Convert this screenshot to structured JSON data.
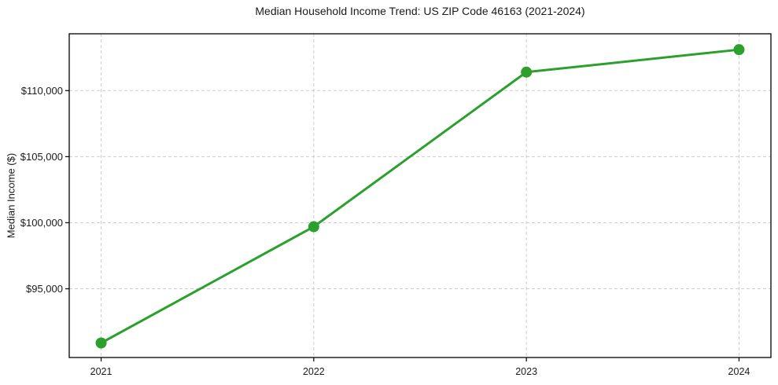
{
  "chart_data": {
    "type": "line",
    "title": "Median Household Income Trend: US ZIP Code 46163 (2021-2024)",
    "xlabel": "",
    "ylabel": "Median Income ($)",
    "x": [
      2021,
      2022,
      2023,
      2024
    ],
    "xtick_labels": [
      "2021",
      "2022",
      "2023",
      "2024"
    ],
    "series": [
      {
        "name": "Median Household Income",
        "values": [
          90900,
          99700,
          111400,
          113100
        ],
        "color": "#2ca02c",
        "marker": "circle"
      }
    ],
    "yticks": [
      95000,
      100000,
      105000,
      110000
    ],
    "ytick_labels": [
      "$95,000",
      "$100,000",
      "$105,000",
      "$110,000"
    ],
    "ylim": [
      89800,
      114300
    ],
    "xlim": [
      2020.85,
      2024.15
    ],
    "grid": true,
    "grid_style": "dashed",
    "grid_color": "#cccccc",
    "spine_color": "#000000",
    "text_color": "#1a1a1a",
    "background_color": "#ffffff",
    "legend": "none",
    "line_width": 3,
    "marker_radius": 7,
    "tick_font_size": 13,
    "xtick_font_size": 12.5
  }
}
